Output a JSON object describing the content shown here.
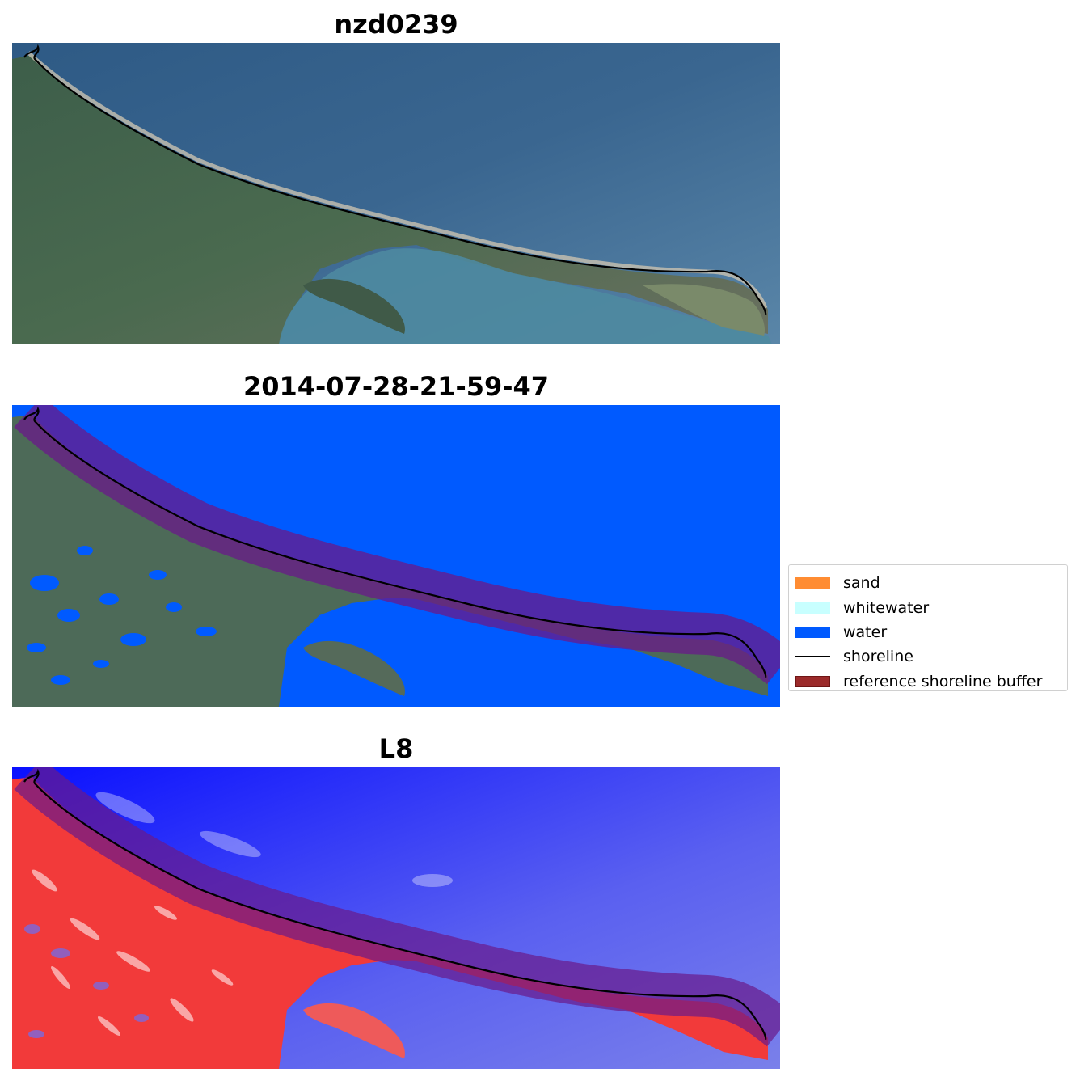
{
  "panels": [
    {
      "title": "nzd0239"
    },
    {
      "title": "2014-07-28-21-59-47"
    },
    {
      "title": "L8"
    }
  ],
  "legend": {
    "items": [
      {
        "label": "sand",
        "color": "#ff8c32",
        "kind": "patch"
      },
      {
        "label": "whitewater",
        "color": "#c8ffff",
        "kind": "patch"
      },
      {
        "label": "water",
        "color": "#005aff",
        "kind": "patch"
      },
      {
        "label": "shoreline",
        "color": "#000000",
        "kind": "line"
      },
      {
        "label": "reference shoreline buffer",
        "color": "#9b2a2a",
        "kind": "patch-outlined"
      }
    ]
  }
}
